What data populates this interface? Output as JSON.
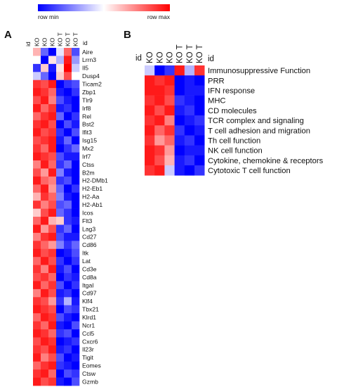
{
  "legend": {
    "min_label": "row min",
    "max_label": "row max",
    "colors": [
      "#0000ff",
      "#ffffff",
      "#ff0000"
    ]
  },
  "chart_data": [
    {
      "type": "heatmap",
      "panel_label": "A",
      "id_label": "id",
      "columns": [
        "KO",
        "KO",
        "KO",
        "KO T",
        "KO T",
        "KO T"
      ],
      "rows": [
        "Aire",
        "Lrrn3",
        "Il5",
        "Dusp4",
        "Ticam2",
        "Zbp1",
        "Tlr9",
        "Irf8",
        "Rel",
        "Bst2",
        "Ifit3",
        "Isg15",
        "Mx2",
        "Irf7",
        "Ctss",
        "B2m",
        "H2-DMb1",
        "H2-Eb1",
        "H2-Aa",
        "H2-Ab1",
        "Icos",
        "Flt3",
        "Lag3",
        "Cd27",
        "Cd86",
        "Itk",
        "Lat",
        "Cd3e",
        "Cd8a",
        "Itgal",
        "Cd97",
        "Klf4",
        "Tbx21",
        "Klrd1",
        "Ncr1",
        "Ccl5",
        "Cxcr6",
        "Il23r",
        "Tigit",
        "Eomes",
        "Ctsw",
        "Gzmb"
      ],
      "scale": [
        -1,
        1
      ],
      "values": [
        [
          0.3,
          -0.6,
          -1,
          -0.1,
          0.6,
          -0.7
        ],
        [
          0,
          -1,
          0.1,
          -0.3,
          0.9,
          -0.4
        ],
        [
          -0.8,
          0.2,
          -0.9,
          0.1,
          1,
          -0.2
        ],
        [
          -0.2,
          -0.6,
          -1,
          0.2,
          0.7,
          0
        ],
        [
          0.8,
          0.7,
          0.9,
          -1,
          -0.8,
          -0.7
        ],
        [
          0.9,
          0.8,
          0.6,
          -0.9,
          -1,
          -0.8
        ],
        [
          0.7,
          0.9,
          0.5,
          -0.7,
          -0.9,
          -1
        ],
        [
          0.9,
          0.6,
          0.8,
          -0.9,
          -0.8,
          -1
        ],
        [
          0.6,
          0.8,
          0.9,
          -0.6,
          -1,
          -0.8
        ],
        [
          0.8,
          0.9,
          0.7,
          -1,
          -0.7,
          -0.9
        ],
        [
          0.9,
          0.7,
          0.8,
          -0.8,
          -1,
          -0.7
        ],
        [
          0.7,
          0.8,
          0.9,
          -0.9,
          -0.6,
          -1
        ],
        [
          0.8,
          0.6,
          0.9,
          -1,
          -0.8,
          -0.6
        ],
        [
          0.9,
          0.8,
          0.7,
          -0.7,
          -0.9,
          -0.9
        ],
        [
          0.5,
          0.9,
          0.6,
          -0.8,
          -0.6,
          -1
        ],
        [
          0.7,
          0.4,
          0.9,
          -0.5,
          -0.9,
          -1
        ],
        [
          0.9,
          0.6,
          0.5,
          -0.8,
          -0.7,
          -1
        ],
        [
          0.6,
          0.9,
          0.4,
          -0.6,
          -1,
          -0.8
        ],
        [
          0.3,
          0.8,
          0.6,
          -0.5,
          -0.9,
          -1
        ],
        [
          0.8,
          0.5,
          0.7,
          -0.7,
          -0.6,
          -1
        ],
        [
          0.2,
          0.7,
          0.9,
          -0.6,
          -0.8,
          -1
        ],
        [
          0.6,
          0.9,
          0.3,
          0.2,
          -0.8,
          -0.9
        ],
        [
          0.9,
          0.4,
          0.7,
          -0.8,
          -0.6,
          -1
        ],
        [
          0.5,
          0.8,
          0.9,
          -0.7,
          -0.9,
          -0.9
        ],
        [
          0.8,
          0.6,
          0.4,
          -0.5,
          -0.8,
          -0.6
        ],
        [
          0.9,
          0.7,
          0.8,
          -1,
          -0.9,
          -0.7
        ],
        [
          0.6,
          0.9,
          0.7,
          -0.8,
          -1,
          -0.8
        ],
        [
          0.8,
          0.5,
          0.9,
          -0.9,
          -0.7,
          -1
        ],
        [
          0.7,
          0.8,
          0.6,
          -1,
          -0.8,
          -0.9
        ],
        [
          0.9,
          0.6,
          0.8,
          -0.7,
          -1,
          -0.8
        ],
        [
          0.5,
          0.9,
          0.7,
          -0.9,
          -0.8,
          -1
        ],
        [
          0.8,
          0.7,
          0.4,
          -0.8,
          -0.3,
          -0.9
        ],
        [
          0.9,
          0.8,
          0.7,
          -1,
          -0.7,
          -0.8
        ],
        [
          0.6,
          0.9,
          0.8,
          -0.7,
          -0.9,
          -1
        ],
        [
          0.8,
          0.6,
          0.9,
          -0.9,
          -1,
          -0.7
        ],
        [
          0.9,
          0.8,
          0.6,
          -0.8,
          -0.7,
          -1
        ],
        [
          0.7,
          0.9,
          0.8,
          -1,
          -0.9,
          -0.8
        ],
        [
          0.8,
          0.7,
          0.9,
          -0.9,
          -0.8,
          -1
        ],
        [
          0.9,
          0.5,
          0.7,
          -0.7,
          -1,
          -0.9
        ],
        [
          0.6,
          0.8,
          0.9,
          -0.8,
          -0.9,
          -1
        ],
        [
          0.8,
          0.9,
          0.6,
          -1,
          -0.7,
          -0.8
        ],
        [
          0.9,
          0.7,
          0.8,
          -0.9,
          -1,
          -0.7
        ]
      ]
    },
    {
      "type": "heatmap",
      "panel_label": "B",
      "id_label": "id",
      "columns": [
        "KO",
        "KO",
        "KO",
        "KO T",
        "KO T",
        "KO T"
      ],
      "rows": [
        "Immunosuppressive Function",
        "PRR",
        "IFN response",
        "MHC",
        "CD molecules",
        "TCR complex and signaling",
        "T cell adhesion and migration",
        "Th cell function",
        "NK cell function",
        "Cytokine, chemokine & receptors",
        "Cytotoxic T cell function"
      ],
      "scale": [
        -1,
        1
      ],
      "values": [
        [
          -0.2,
          -1,
          -0.8,
          0.9,
          -0.3,
          0.8
        ],
        [
          0.9,
          0.8,
          0.9,
          -1,
          -0.9,
          -1
        ],
        [
          0.9,
          0.9,
          0.8,
          -1,
          -0.9,
          -0.9
        ],
        [
          0.8,
          0.9,
          0.7,
          -0.8,
          -0.9,
          -1
        ],
        [
          0.9,
          0.7,
          0.9,
          -0.9,
          -0.8,
          -1
        ],
        [
          0.8,
          0.9,
          0.5,
          -1,
          -0.9,
          -0.8
        ],
        [
          0.9,
          0.6,
          0.8,
          -0.8,
          -1,
          -0.9
        ],
        [
          0.8,
          0.4,
          0.6,
          -0.9,
          -0.8,
          -1
        ],
        [
          0.9,
          0.8,
          0.4,
          -1,
          -0.9,
          -0.9
        ],
        [
          0.9,
          0.7,
          0.3,
          -0.9,
          -0.8,
          -1
        ],
        [
          0.8,
          0.9,
          -0.2,
          -0.9,
          -1,
          -0.8
        ]
      ]
    }
  ]
}
